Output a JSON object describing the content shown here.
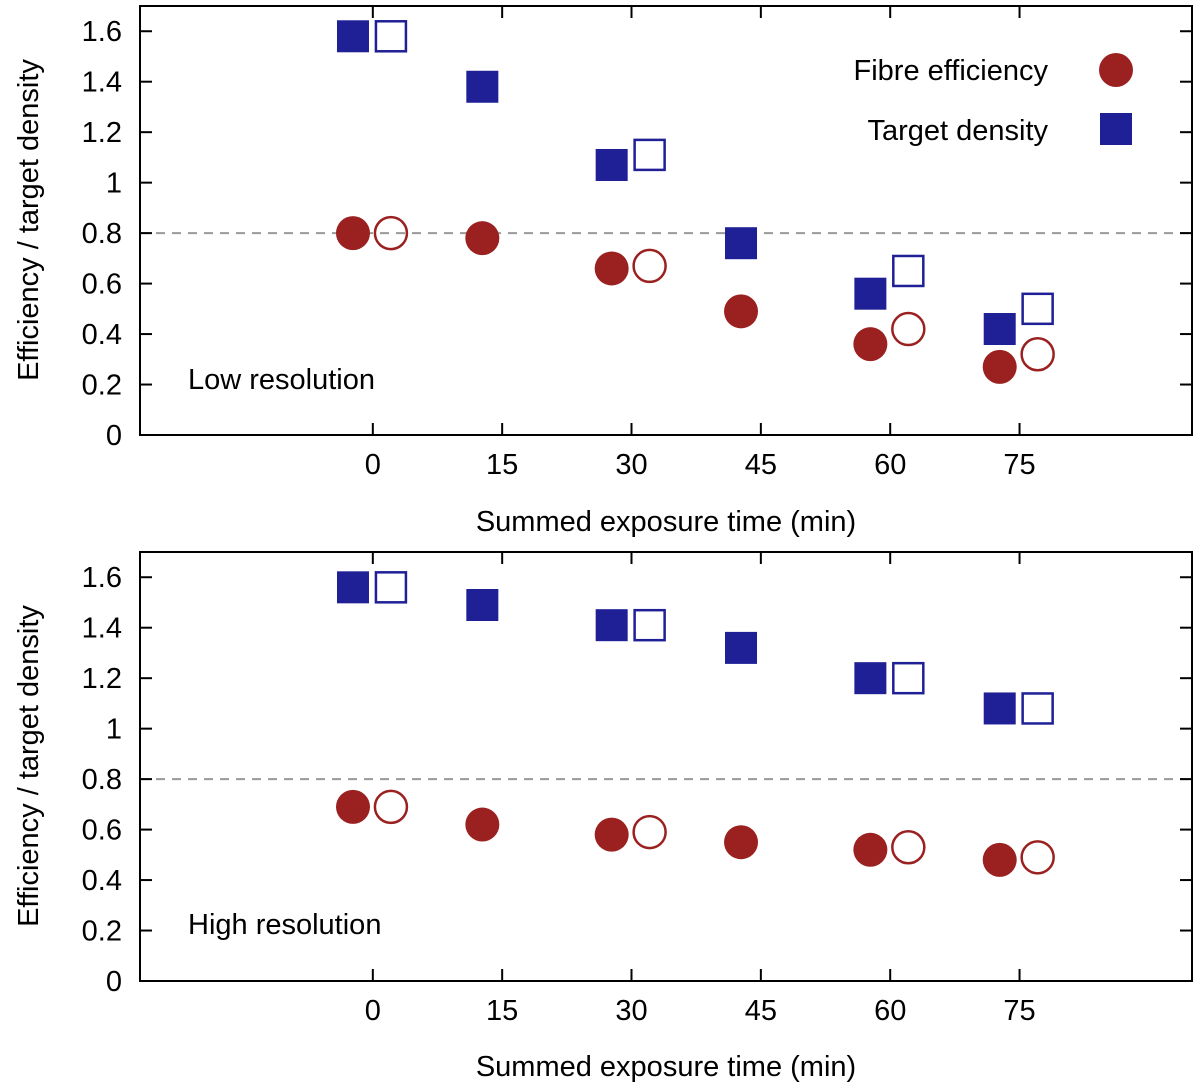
{
  "colors": {
    "efficiency": "#9b2121",
    "density": "#1f1f96",
    "reference_line": "#999999",
    "axis": "#000000"
  },
  "legend": {
    "position": "top-right",
    "items": [
      {
        "label": "Fibre efficiency",
        "series": "efficiency",
        "marker": "circle"
      },
      {
        "label": "Target density",
        "series": "density",
        "marker": "square"
      }
    ]
  },
  "chart_data": [
    {
      "type": "scatter",
      "panel_label": "Low resolution",
      "xlabel": "Summed exposure time (min)",
      "ylabel": "Efficiency / target density",
      "xlim": [
        -27,
        95
      ],
      "ylim": [
        0,
        1.7
      ],
      "xticks": [
        0,
        15,
        30,
        45,
        60,
        75
      ],
      "yticks": [
        0,
        0.2,
        0.4,
        0.6,
        0.8,
        1,
        1.2,
        1.4,
        1.6
      ],
      "ytick_labels": [
        "0",
        "0.2",
        "0.4",
        "0.6",
        "0.8",
        "1",
        "1.2",
        "1.4",
        "1.6"
      ],
      "reference_line_y": 0.8,
      "series": [
        {
          "name": "Fibre efficiency",
          "key": "efficiency",
          "marker": "circle",
          "filled": true,
          "x": [
            -2.3,
            12.7,
            27.7,
            42.7,
            57.7,
            72.7
          ],
          "y": [
            0.8,
            0.78,
            0.66,
            0.49,
            0.36,
            0.27
          ]
        },
        {
          "name": "Fibre efficiency (open)",
          "key": "efficiency",
          "marker": "circle",
          "filled": false,
          "x": [
            2.1,
            32.1,
            62.1,
            77.1
          ],
          "y": [
            0.8,
            0.67,
            0.42,
            0.32
          ]
        },
        {
          "name": "Target density",
          "key": "density",
          "marker": "square",
          "filled": true,
          "x": [
            -2.3,
            12.7,
            27.7,
            42.7,
            57.7,
            72.7
          ],
          "y": [
            1.58,
            1.38,
            1.07,
            0.76,
            0.56,
            0.42
          ]
        },
        {
          "name": "Target density (open)",
          "key": "density",
          "marker": "square",
          "filled": false,
          "x": [
            2.1,
            32.1,
            62.1,
            77.1
          ],
          "y": [
            1.58,
            1.11,
            0.65,
            0.5
          ]
        }
      ]
    },
    {
      "type": "scatter",
      "panel_label": "High resolution",
      "xlabel": "Summed exposure time (min)",
      "ylabel": "Efficiency / target density",
      "xlim": [
        -27,
        95
      ],
      "ylim": [
        0,
        1.7
      ],
      "xticks": [
        0,
        15,
        30,
        45,
        60,
        75
      ],
      "yticks": [
        0,
        0.2,
        0.4,
        0.6,
        0.8,
        1,
        1.2,
        1.4,
        1.6
      ],
      "ytick_labels": [
        "0",
        "0.2",
        "0.4",
        "0.6",
        "0.8",
        "1",
        "1.2",
        "1.4",
        "1.6"
      ],
      "reference_line_y": 0.8,
      "series": [
        {
          "name": "Fibre efficiency",
          "key": "efficiency",
          "marker": "circle",
          "filled": true,
          "x": [
            -2.3,
            12.7,
            27.7,
            42.7,
            57.7,
            72.7
          ],
          "y": [
            0.69,
            0.62,
            0.58,
            0.55,
            0.52,
            0.48
          ]
        },
        {
          "name": "Fibre efficiency (open)",
          "key": "efficiency",
          "marker": "circle",
          "filled": false,
          "x": [
            2.1,
            32.1,
            62.1,
            77.1
          ],
          "y": [
            0.69,
            0.59,
            0.53,
            0.49
          ]
        },
        {
          "name": "Target density",
          "key": "density",
          "marker": "square",
          "filled": true,
          "x": [
            -2.3,
            12.7,
            27.7,
            42.7,
            57.7,
            72.7
          ],
          "y": [
            1.56,
            1.49,
            1.41,
            1.32,
            1.2,
            1.08
          ]
        },
        {
          "name": "Target density (open)",
          "key": "density",
          "marker": "square",
          "filled": false,
          "x": [
            2.1,
            32.1,
            62.1,
            77.1
          ],
          "y": [
            1.56,
            1.41,
            1.2,
            1.08
          ]
        }
      ]
    }
  ]
}
